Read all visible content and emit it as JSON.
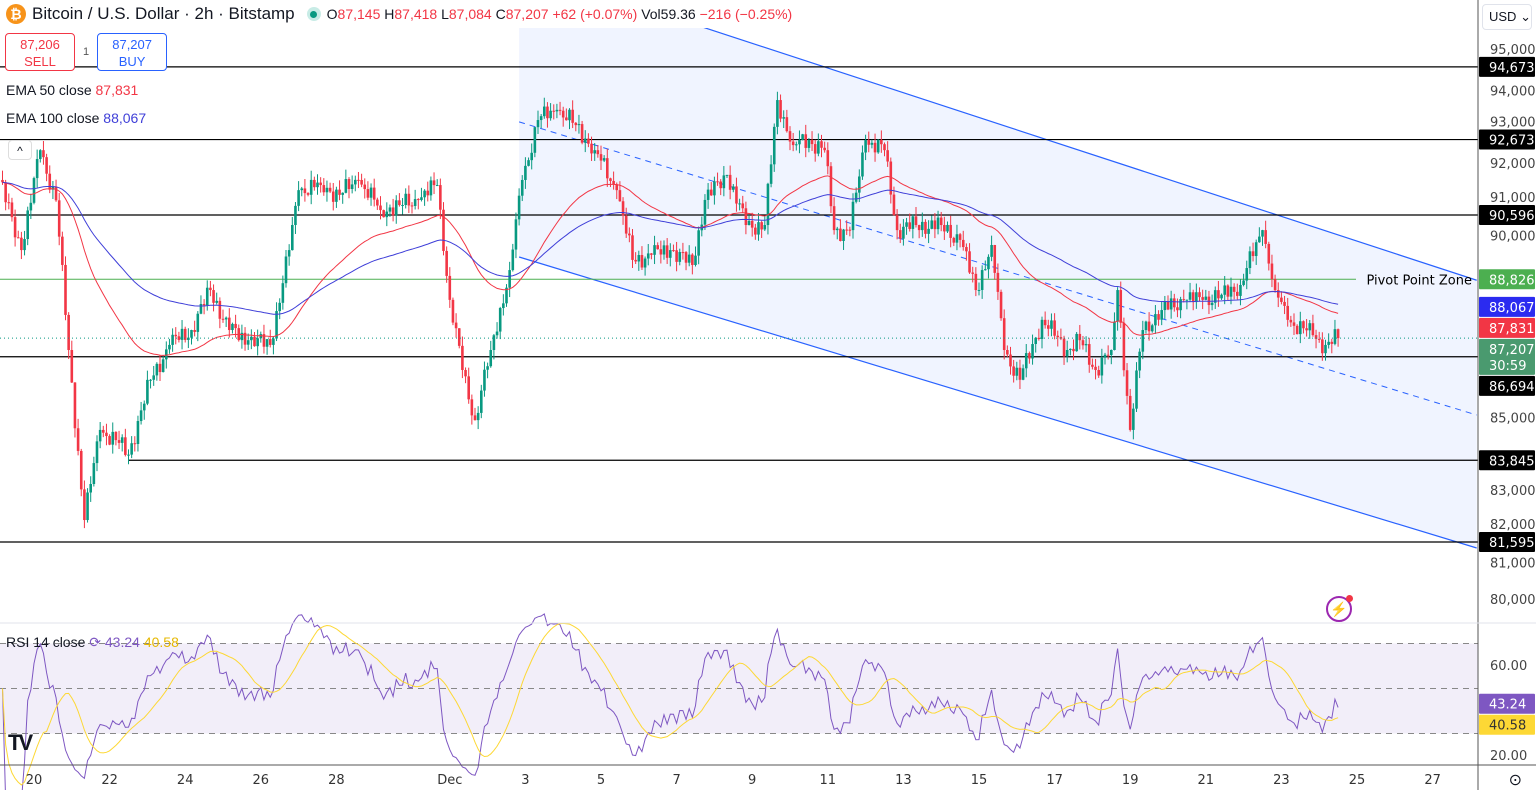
{
  "header": {
    "symbol_icon": "bitcoin-icon",
    "title": "Bitcoin / U.S. Dollar · 2h · Bitstamp",
    "ohlc": {
      "o_label": "O",
      "o": "87,145",
      "h_label": "H",
      "h": "87,418",
      "l_label": "L",
      "l": "87,084",
      "c_label": "C",
      "c": "87,207",
      "change": "+62 (+0.07%)",
      "vol_label": "Vol",
      "vol": "59.36",
      "vol_change": "−216 (−0.25%)"
    }
  },
  "trade": {
    "sell_price": "87,206",
    "sell_label": "SELL",
    "spread": "1",
    "buy_price": "87,207",
    "buy_label": "BUY"
  },
  "legend": {
    "ema50_label": "EMA 50 close",
    "ema50_value": "87,831",
    "ema100_label": "EMA 100 close",
    "ema100_value": "88,067",
    "rsi_label": "RSI 14 close",
    "rsi_value": "43.24",
    "rsi_ma_value": "40.58"
  },
  "currency": "USD",
  "colors": {
    "up": "#089981",
    "down": "#f23645",
    "ema50": "#f23645",
    "ema100": "#3f3fd8",
    "channel": "#2962ff",
    "pivot": "#4caf50",
    "rsi": "#7e57c2",
    "rsi_ma": "#fdd835"
  },
  "chart_data": {
    "type": "candlestick",
    "ylim": [
      80000,
      95000
    ],
    "y_ticks": [
      "95,000",
      "94,000",
      "93,000",
      "92,000",
      "91,000",
      "90,000",
      "85,000",
      "83,000",
      "82,000",
      "81,000",
      "80,000"
    ],
    "y_tick_values": [
      95000,
      94000,
      93000,
      92000,
      91000,
      90000,
      85000,
      83000,
      82000,
      81000,
      80000
    ],
    "x_ticks": [
      [
        "Nov 20",
        "20"
      ],
      [
        "Nov 22",
        "22"
      ],
      [
        "Nov 24",
        "24"
      ],
      [
        "Nov 26",
        "26"
      ],
      [
        "Nov 28",
        "28"
      ],
      [
        "Dec 1",
        "Dec"
      ],
      [
        "Dec 3",
        "3"
      ],
      [
        "Dec 5",
        "5"
      ],
      [
        "Dec 7",
        "7"
      ],
      [
        "Dec 9",
        "9"
      ],
      [
        "Dec 11",
        "11"
      ],
      [
        "Dec 13",
        "13"
      ],
      [
        "Dec 15",
        "15"
      ],
      [
        "Dec 17",
        "17"
      ],
      [
        "Dec 19",
        "19"
      ],
      [
        "Dec 21",
        "21"
      ],
      [
        "Dec 23",
        "23"
      ],
      [
        "Dec 25",
        "25"
      ],
      [
        "Dec 27",
        "27"
      ]
    ],
    "closes": [
      [
        "Nov 19 02:00",
        91560
      ],
      [
        "Nov 19 16:00",
        89630
      ],
      [
        "Nov 20 04:00",
        92380
      ],
      [
        "Nov 20 14:00",
        91000
      ],
      [
        "Nov 20 22:00",
        86880
      ],
      [
        "Nov 21 08:00",
        82200
      ],
      [
        "Nov 21 18:00",
        84680
      ],
      [
        "Nov 22 04:00",
        84400
      ],
      [
        "Nov 22 12:00",
        84000
      ],
      [
        "Nov 23 02:00",
        86060
      ],
      [
        "Nov 23 14:00",
        87020
      ],
      [
        "Nov 24 04:00",
        87430
      ],
      [
        "Nov 24 16:00",
        88530
      ],
      [
        "Nov 25 04:00",
        87430
      ],
      [
        "Nov 25 16:00",
        87150
      ],
      [
        "Nov 26 06:00",
        87020
      ],
      [
        "Nov 26 18:00",
        89630
      ],
      [
        "Nov 27 00:00",
        91280
      ],
      [
        "Nov 27 14:00",
        91420
      ],
      [
        "Nov 28 02:00",
        91150
      ],
      [
        "Nov 28 14:00",
        91560
      ],
      [
        "Nov 29 04:00",
        90730
      ],
      [
        "Nov 29 16:00",
        90870
      ],
      [
        "Nov 30 04:00",
        91010
      ],
      [
        "Nov 30 16:00",
        91420
      ],
      [
        "Dec 1 00:00",
        88260
      ],
      [
        "Dec 1 08:00",
        86330
      ],
      [
        "Dec 1 16:00",
        84950
      ],
      [
        "Dec 2 02:00",
        86880
      ],
      [
        "Dec 2 14:00",
        89080
      ],
      [
        "Dec 2 22:00",
        91560
      ],
      [
        "Dec 3 08:00",
        93210
      ],
      [
        "Dec 3 20:00",
        93490
      ],
      [
        "Dec 4 08:00",
        93070
      ],
      [
        "Dec 4 20:00",
        92380
      ],
      [
        "Dec 5 10:00",
        91280
      ],
      [
        "Dec 5 20:00",
        89360
      ],
      [
        "Dec 6 08:00",
        89500
      ],
      [
        "Dec 6 20:00",
        89630
      ],
      [
        "Dec 7 10:00",
        89220
      ],
      [
        "Dec 7 18:00",
        91010
      ],
      [
        "Dec 8 08:00",
        91700
      ],
      [
        "Dec 8 20:00",
        90320
      ],
      [
        "Dec 9 08:00",
        90320
      ],
      [
        "Dec 9 16:00",
        93760
      ],
      [
        "Dec 10 02:00",
        92520
      ],
      [
        "Dec 10 12:00",
        92660
      ],
      [
        "Dec 10 22:00",
        92380
      ],
      [
        "Dec 11 04:00",
        90180
      ],
      [
        "Dec 11 14:00",
        90180
      ],
      [
        "Dec 12 00:00",
        92660
      ],
      [
        "Dec 12 12:00",
        92380
      ],
      [
        "Dec 12 20:00",
        90180
      ],
      [
        "Dec 13 08:00",
        90320
      ],
      [
        "Dec 14 00:00",
        90320
      ],
      [
        "Dec 14 12:00",
        89910
      ],
      [
        "Dec 14 22:00",
        88530
      ],
      [
        "Dec 15 08:00",
        89770
      ],
      [
        "Dec 15 16:00",
        86880
      ],
      [
        "Dec 16 02:00",
        86060
      ],
      [
        "Dec 16 16:00",
        87710
      ],
      [
        "Dec 17 08:00",
        86880
      ],
      [
        "Dec 17 16:00",
        87150
      ],
      [
        "Dec 18 02:00",
        86330
      ],
      [
        "Dec 18 12:00",
        86880
      ],
      [
        "Dec 18 16:00",
        88530
      ],
      [
        "Dec 19 00:00",
        84680
      ],
      [
        "Dec 19 08:00",
        87430
      ],
      [
        "Dec 19 20:00",
        87980
      ],
      [
        "Dec 20 10:00",
        88260
      ],
      [
        "Dec 20 22:00",
        88260
      ],
      [
        "Dec 21 10:00",
        88400
      ],
      [
        "Dec 21 22:00",
        88670
      ],
      [
        "Dec 22 12:00",
        90180
      ],
      [
        "Dec 22 20:00",
        88530
      ],
      [
        "Dec 23 04:00",
        87710
      ],
      [
        "Dec 23 20:00",
        87290
      ],
      [
        "Dec 24 04:00",
        87020
      ],
      [
        "Dec 24 12:00",
        87207
      ]
    ],
    "levels": [
      {
        "price": 94673,
        "label": "94,673"
      },
      {
        "price": 92673,
        "label": "92,673"
      },
      {
        "price": 90596,
        "label": "90,596"
      },
      {
        "price": 86694,
        "label": "86,694"
      },
      {
        "price": 83845,
        "label": "83,845",
        "from": "Nov 22 12:00"
      },
      {
        "price": 81595,
        "label": "81,595"
      }
    ],
    "pivot": {
      "price": 88826,
      "label": "88,826",
      "text": "Pivot Point Zone"
    },
    "channel": {
      "start": "Dec 2 20:00",
      "end": "Dec 28 04:00",
      "upper": [
        97420,
        88800
      ],
      "middle": [
        93160,
        85090
      ],
      "lower": [
        89440,
        81430
      ]
    },
    "price_badges": {
      "ema100": "88,067",
      "ema50": "87,831",
      "last": "87,207",
      "countdown": "30:59"
    },
    "rsi": {
      "ylim_ticks": [
        "60.00",
        "20.00"
      ],
      "tick_values": [
        60,
        20
      ],
      "bands": [
        70,
        50,
        30
      ],
      "period": 14
    }
  }
}
